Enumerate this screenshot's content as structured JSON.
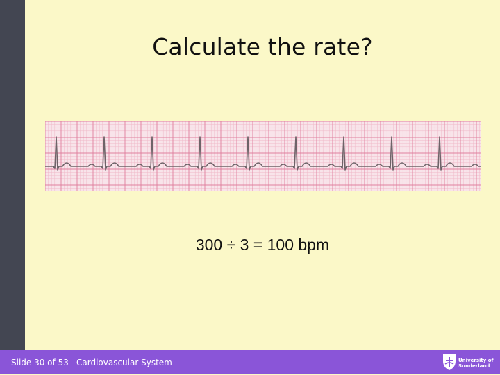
{
  "slide": {
    "title": "Calculate the rate?",
    "formula": "300 ÷ 3 = 100 bpm",
    "ecg_strip": {
      "icon": "ecg-strip-image",
      "beat_count": 9,
      "large_squares_between_beats": 3
    }
  },
  "footer": {
    "slide_number": "Slide 30 of 53",
    "course": "Cardiovascular System",
    "logo": {
      "icon": "university-shield-icon",
      "line1": "University of",
      "line2": "Sunderland"
    }
  },
  "colors": {
    "background": "#fbf8c8",
    "sidebar": "#434652",
    "footer": "#8a55d8",
    "grid_minor": "#f0b8c8",
    "grid_major": "#e07f9e",
    "trace": "#6e6368"
  }
}
